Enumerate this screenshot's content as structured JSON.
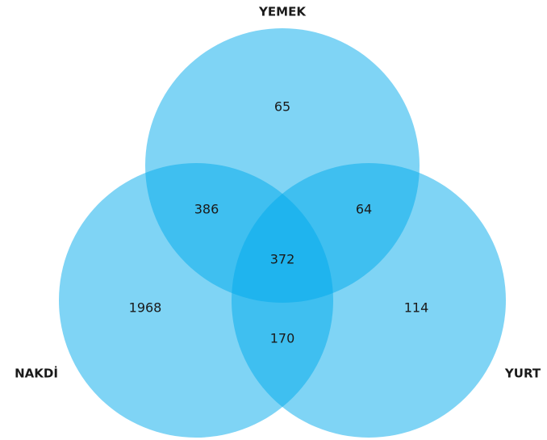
{
  "chart_data": {
    "type": "venn",
    "color": "#00a9ec",
    "sets": [
      "YEMEK",
      "NAKDİ",
      "YURT"
    ],
    "regions": [
      {
        "sets": [
          "YEMEK"
        ],
        "value": 65
      },
      {
        "sets": [
          "YEMEK",
          "NAKDİ"
        ],
        "value": 386
      },
      {
        "sets": [
          "YEMEK",
          "YURT"
        ],
        "value": 64
      },
      {
        "sets": [
          "YEMEK",
          "NAKDİ",
          "YURT"
        ],
        "value": 372
      },
      {
        "sets": [
          "NAKDİ"
        ],
        "value": 1968
      },
      {
        "sets": [
          "YURT"
        ],
        "value": 114
      },
      {
        "sets": [
          "NAKDİ",
          "YURT"
        ],
        "value": 170
      }
    ]
  }
}
